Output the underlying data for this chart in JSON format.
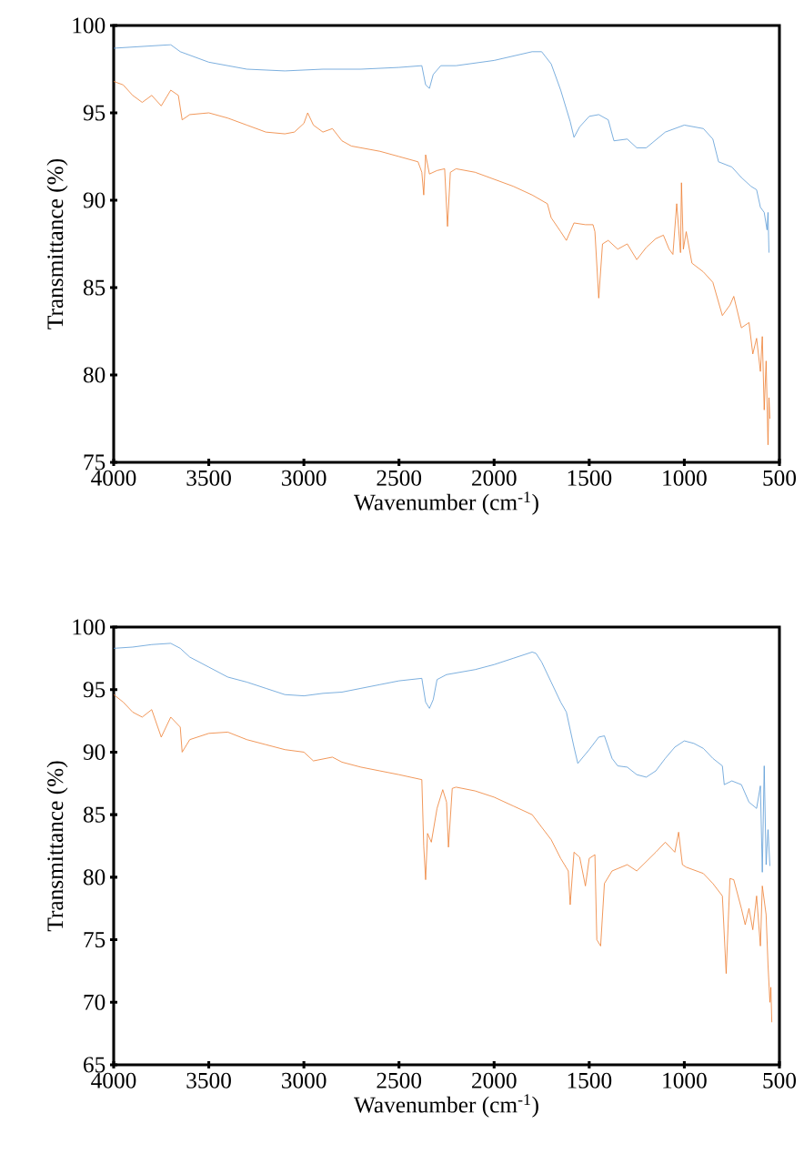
{
  "chart_data": [
    {
      "type": "line",
      "xlabel": "Wavenumber (cm$^{-1}$)",
      "ylabel": "Transmittance (%)",
      "xlim": [
        4000,
        500
      ],
      "ylim": [
        75,
        100
      ],
      "xticks": [
        4000,
        3500,
        3000,
        2500,
        2000,
        1500,
        1000,
        500
      ],
      "yticks": [
        75,
        80,
        85,
        90,
        95,
        100
      ],
      "series": [
        {
          "color": "#5b9bd5",
          "x": [
            4000,
            3700,
            3650,
            3500,
            3300,
            3100,
            2900,
            2700,
            2500,
            2380,
            2360,
            2340,
            2320,
            2280,
            2200,
            2000,
            1800,
            1750,
            1700,
            1650,
            1600,
            1580,
            1550,
            1500,
            1450,
            1400,
            1370,
            1300,
            1250,
            1200,
            1100,
            1000,
            900,
            850,
            820,
            750,
            700,
            650,
            620,
            600,
            580,
            565,
            560,
            555
          ],
          "values": [
            98.7,
            98.9,
            98.5,
            97.9,
            97.5,
            97.4,
            97.5,
            97.5,
            97.6,
            97.7,
            96.6,
            96.4,
            97.2,
            97.7,
            97.7,
            98.0,
            98.5,
            98.5,
            97.8,
            96.3,
            94.5,
            93.6,
            94.2,
            94.8,
            94.9,
            94.6,
            93.4,
            93.5,
            93.0,
            93.0,
            93.9,
            94.3,
            94.1,
            93.5,
            92.2,
            91.9,
            91.3,
            90.8,
            90.6,
            89.6,
            89.3,
            88.3,
            89.3,
            87.0
          ]
        },
        {
          "color": "#ed7d31",
          "x": [
            4000,
            3950,
            3900,
            3850,
            3800,
            3750,
            3700,
            3660,
            3640,
            3600,
            3500,
            3400,
            3300,
            3200,
            3100,
            3050,
            3000,
            2980,
            2950,
            2900,
            2850,
            2800,
            2750,
            2600,
            2500,
            2400,
            2380,
            2370,
            2360,
            2340,
            2300,
            2260,
            2245,
            2230,
            2200,
            2100,
            2000,
            1900,
            1800,
            1720,
            1700,
            1650,
            1620,
            1580,
            1520,
            1480,
            1470,
            1450,
            1430,
            1400,
            1350,
            1300,
            1250,
            1200,
            1150,
            1110,
            1080,
            1060,
            1040,
            1020,
            1015,
            1005,
            990,
            960,
            900,
            850,
            800,
            760,
            740,
            700,
            660,
            640,
            620,
            600,
            590,
            580,
            570,
            560,
            555,
            550
          ],
          "values": [
            96.8,
            96.6,
            96.0,
            95.6,
            96.0,
            95.4,
            96.3,
            96.0,
            94.6,
            94.9,
            95.0,
            94.7,
            94.3,
            93.9,
            93.8,
            93.9,
            94.4,
            95.0,
            94.3,
            93.9,
            94.1,
            93.4,
            93.1,
            92.8,
            92.5,
            92.2,
            91.6,
            90.3,
            92.6,
            91.5,
            91.7,
            91.8,
            88.5,
            91.6,
            91.8,
            91.6,
            91.2,
            90.8,
            90.3,
            89.8,
            89.0,
            88.2,
            87.7,
            88.7,
            88.6,
            88.6,
            88.2,
            84.4,
            87.5,
            87.7,
            87.2,
            87.5,
            86.6,
            87.3,
            87.8,
            88.0,
            87.2,
            86.9,
            89.8,
            87.0,
            91.0,
            87.2,
            88.2,
            86.4,
            85.9,
            85.3,
            83.4,
            84.0,
            84.5,
            82.7,
            83.0,
            81.2,
            82.1,
            80.2,
            82.2,
            78.0,
            80.8,
            76.0,
            78.7,
            77.5
          ]
        }
      ]
    },
    {
      "type": "line",
      "xlabel": "Wavenumber (cm$^{-1}$)",
      "ylabel": "Transmittance (%)",
      "xlim": [
        4000,
        500
      ],
      "ylim": [
        65,
        100
      ],
      "xticks": [
        4000,
        3500,
        3000,
        2500,
        2000,
        1500,
        1000,
        500
      ],
      "yticks": [
        65,
        70,
        75,
        80,
        85,
        90,
        95,
        100
      ],
      "series": [
        {
          "color": "#5b9bd5",
          "x": [
            4000,
            3900,
            3800,
            3700,
            3650,
            3600,
            3500,
            3400,
            3300,
            3200,
            3100,
            3000,
            2900,
            2800,
            2700,
            2600,
            2500,
            2380,
            2360,
            2340,
            2320,
            2300,
            2250,
            2100,
            2000,
            1900,
            1800,
            1780,
            1750,
            1700,
            1650,
            1620,
            1580,
            1560,
            1500,
            1450,
            1420,
            1380,
            1350,
            1300,
            1250,
            1200,
            1150,
            1100,
            1050,
            1000,
            950,
            900,
            850,
            800,
            790,
            750,
            700,
            660,
            620,
            600,
            590,
            580,
            570,
            560,
            550
          ],
          "values": [
            98.3,
            98.4,
            98.6,
            98.7,
            98.3,
            97.6,
            96.8,
            96.0,
            95.6,
            95.1,
            94.6,
            94.5,
            94.7,
            94.8,
            95.1,
            95.4,
            95.7,
            95.9,
            94.0,
            93.5,
            94.2,
            95.8,
            96.2,
            96.6,
            97.0,
            97.5,
            98.0,
            97.9,
            97.2,
            95.6,
            94.0,
            93.2,
            90.4,
            89.1,
            90.2,
            91.2,
            91.3,
            89.5,
            88.9,
            88.8,
            88.2,
            88.0,
            88.5,
            89.5,
            90.4,
            90.9,
            90.7,
            90.3,
            89.5,
            88.9,
            87.4,
            87.7,
            87.4,
            86.0,
            85.5,
            87.3,
            80.4,
            88.9,
            81.0,
            83.8,
            80.9
          ]
        },
        {
          "color": "#ed7d31",
          "x": [
            4000,
            3950,
            3900,
            3850,
            3800,
            3750,
            3700,
            3650,
            3640,
            3600,
            3500,
            3400,
            3300,
            3200,
            3100,
            3000,
            2950,
            2850,
            2800,
            2700,
            2600,
            2500,
            2380,
            2370,
            2360,
            2350,
            2330,
            2300,
            2270,
            2250,
            2240,
            2220,
            2200,
            2100,
            2000,
            1900,
            1800,
            1750,
            1700,
            1650,
            1610,
            1600,
            1580,
            1550,
            1520,
            1500,
            1470,
            1460,
            1440,
            1420,
            1380,
            1300,
            1250,
            1150,
            1100,
            1050,
            1030,
            1010,
            990,
            900,
            850,
            800,
            780,
            760,
            740,
            700,
            680,
            660,
            640,
            620,
            600,
            590,
            570,
            560,
            550,
            545,
            540
          ],
          "values": [
            94.6,
            94.0,
            93.2,
            92.8,
            93.4,
            91.2,
            92.8,
            92.0,
            90.0,
            91.0,
            91.5,
            91.6,
            91.0,
            90.6,
            90.2,
            90.0,
            89.3,
            89.6,
            89.2,
            88.8,
            88.5,
            88.2,
            87.8,
            82.5,
            79.8,
            83.5,
            82.8,
            85.5,
            87.0,
            86.0,
            82.4,
            87.1,
            87.2,
            86.9,
            86.4,
            85.7,
            85.0,
            84.0,
            83.0,
            81.5,
            80.5,
            77.8,
            82.0,
            81.6,
            79.3,
            81.5,
            81.8,
            75.0,
            74.5,
            79.5,
            80.5,
            81.0,
            80.5,
            82.0,
            82.8,
            82.0,
            83.6,
            81.0,
            80.8,
            80.3,
            79.5,
            78.5,
            72.3,
            79.9,
            79.8,
            77.5,
            76.2,
            77.5,
            75.8,
            78.5,
            74.5,
            79.3,
            77.0,
            73.0,
            70.0,
            71.2,
            68.4
          ]
        }
      ]
    }
  ]
}
